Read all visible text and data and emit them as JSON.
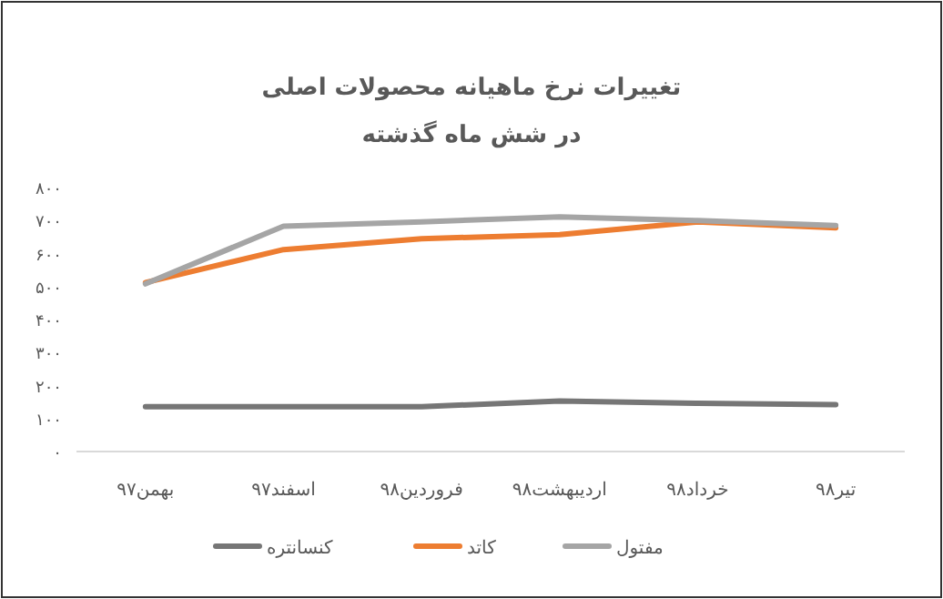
{
  "chart_data": {
    "type": "line",
    "title": "تغییرات نرخ ماهیانه محصولات اصلی",
    "subtitle": "در شش ماه گذشته",
    "categories": [
      "بهمن۹۷",
      "اسفند۹۷",
      "فروردین۹۸",
      "اردیبهشت۹۸",
      "خرداد۹۸",
      "تیر۹۸"
    ],
    "series": [
      {
        "name": "کنسانتره",
        "color": "#767676",
        "values": [
          136,
          136,
          136,
          153,
          146,
          142
        ]
      },
      {
        "name": "کاتد",
        "color": "#ed7d31",
        "values": [
          512,
          612,
          645,
          657,
          696,
          678
        ]
      },
      {
        "name": "مفتول",
        "color": "#a5a5a5",
        "values": [
          508,
          683,
          696,
          711,
          700,
          685
        ]
      }
    ],
    "ylim": [
      0,
      800
    ],
    "yticks": [
      {
        "value": 0,
        "label": "۰"
      },
      {
        "value": 100,
        "label": "۱۰۰"
      },
      {
        "value": 200,
        "label": "۲۰۰"
      },
      {
        "value": 300,
        "label": "۳۰۰"
      },
      {
        "value": 400,
        "label": "۴۰۰"
      },
      {
        "value": 500,
        "label": "۵۰۰"
      },
      {
        "value": 600,
        "label": "۶۰۰"
      },
      {
        "value": 700,
        "label": "۷۰۰"
      },
      {
        "value": 800,
        "label": "۸۰۰"
      }
    ],
    "legend": "bottom",
    "marker": "none",
    "line_style": "solid"
  }
}
